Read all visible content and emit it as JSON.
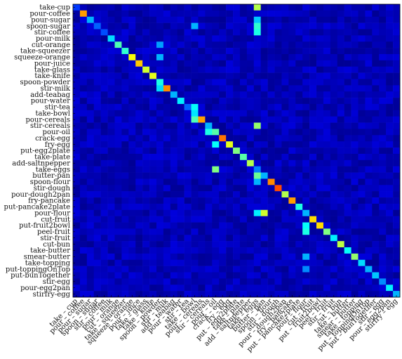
{
  "chart_data": {
    "type": "heatmap",
    "title": "",
    "xlabel": "",
    "ylabel": "",
    "colormap": "jet",
    "value_range": [
      0,
      1
    ],
    "labels": [
      "take-cup",
      "pour-coffee",
      "pour-sugar",
      "spoon-sugar",
      "stir-coffee",
      "pour-milk",
      "cut-orange",
      "take-squeezer",
      "squeeze-orange",
      "pour-juice",
      "take-glass",
      "take-knife",
      "spoon-powder",
      "stir-milk",
      "add-teabag",
      "pour-water",
      "stir-tea",
      "take-bowl",
      "pour-cereals",
      "stir-cereals",
      "pour-oil",
      "crack-egg",
      "fry-egg",
      "put-egg2plate",
      "take-plate",
      "add-saltnpepper",
      "take-eggs",
      "butter-pan",
      "spoon-flour",
      "stir-dough",
      "pour-dough2pan",
      "fry-pancake",
      "put-pancake2plate",
      "pour-flour",
      "cut-fruit",
      "put-fruit2bowl",
      "peel-fruit",
      "stir-fruit",
      "cut-bun",
      "take-butter",
      "smear-butter",
      "take-topping",
      "put-toppingOnTop",
      "put-bunTogether",
      "stir-egg",
      "pour-egg2pan",
      "stirfry-egg"
    ],
    "x_tick_labels": [
      "take – cup",
      "pour – coffee",
      "pour – sugar",
      "spoon – sugar",
      "stir – coffee",
      "pour – milk",
      "cut – orange",
      "take – squeezer",
      "squeeze – orange",
      "pour – juice",
      "take – glass",
      "take – knife",
      "spoon – powder",
      "stir – milk",
      "add – teabag",
      "pour – water",
      "stir – tea",
      "take – bowl",
      "pour – cereals",
      "stir – cereals",
      "pour – oil",
      "crack – egg",
      "fry – egg",
      "put – egg2plate",
      "take – plate",
      "add – saltnpepper",
      "take – eggs",
      "butter – pan",
      "spoon – flour",
      "stir – dough",
      "pour – dough2pan",
      "fry – pancake",
      "put – pancake2plate",
      "pour – flour",
      "cut – fruit",
      "put – fruit2bowl",
      "peel – fruit",
      "stir – fruit",
      "cut – bun",
      "take – butter",
      "smear – butter",
      "take – topping",
      "put – toppingOnTop",
      "put – bunTogether",
      "stir – egg",
      "pour – egg2pan",
      "stirfry – egg"
    ],
    "diagonal": [
      0.18,
      0.72,
      0.3,
      0.22,
      0.2,
      0.34,
      0.45,
      0.42,
      0.62,
      0.68,
      0.58,
      0.6,
      0.4,
      0.74,
      0.3,
      0.36,
      0.22,
      0.35,
      0.72,
      0.3,
      0.46,
      0.76,
      0.6,
      0.5,
      0.46,
      0.55,
      0.25,
      0.3,
      0.74,
      0.8,
      0.55,
      0.72,
      0.4,
      0.3,
      0.66,
      0.66,
      0.5,
      0.36,
      0.56,
      0.38,
      0.52,
      0.34,
      0.3,
      0.32,
      0.26,
      0.36,
      0.3
    ],
    "highlights": [
      {
        "row": 0,
        "col": 26,
        "value": 0.55
      },
      {
        "row": 2,
        "col": 26,
        "value": 0.32
      },
      {
        "row": 3,
        "col": 26,
        "value": 0.42
      },
      {
        "row": 3,
        "col": 17,
        "value": 0.3
      },
      {
        "row": 4,
        "col": 26,
        "value": 0.4
      },
      {
        "row": 16,
        "col": 17,
        "value": 0.38
      },
      {
        "row": 18,
        "col": 17,
        "value": 0.45
      },
      {
        "row": 19,
        "col": 26,
        "value": 0.52
      },
      {
        "row": 20,
        "col": 19,
        "value": 0.4
      },
      {
        "row": 22,
        "col": 20,
        "value": 0.38
      },
      {
        "row": 26,
        "col": 20,
        "value": 0.5
      },
      {
        "row": 27,
        "col": 26,
        "value": 0.48
      },
      {
        "row": 28,
        "col": 26,
        "value": 0.3
      },
      {
        "row": 33,
        "col": 27,
        "value": 0.58
      },
      {
        "row": 33,
        "col": 26,
        "value": 0.36
      },
      {
        "row": 36,
        "col": 33,
        "value": 0.4
      },
      {
        "row": 35,
        "col": 33,
        "value": 0.38
      },
      {
        "row": 40,
        "col": 33,
        "value": 0.3
      },
      {
        "row": 42,
        "col": 33,
        "value": 0.26
      },
      {
        "row": 13,
        "col": 12,
        "value": 0.34
      },
      {
        "row": 6,
        "col": 12,
        "value": 0.28
      },
      {
        "row": 8,
        "col": 12,
        "value": 0.3
      }
    ]
  }
}
